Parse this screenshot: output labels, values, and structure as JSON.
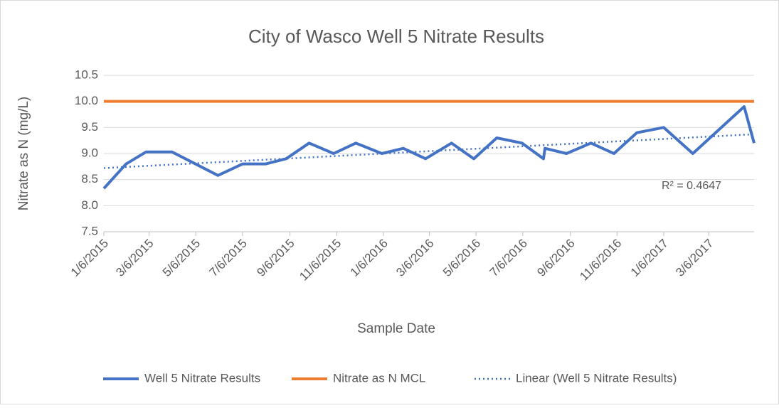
{
  "chart_data": {
    "type": "line",
    "title": "City of Wasco Well 5 Nitrate Results",
    "x_label": "Sample Date",
    "y_label": "Nitrate as N (mg/L)",
    "xlim": [
      "1/6/2015",
      "5/4/2017"
    ],
    "xticks": [
      "1/6/2015",
      "3/6/2015",
      "5/6/2015",
      "7/6/2015",
      "9/6/2015",
      "11/6/2015",
      "1/6/2016",
      "3/6/2016",
      "5/6/2016",
      "7/6/2016",
      "9/6/2016",
      "11/6/2016",
      "1/6/2017",
      "3/6/2017"
    ],
    "ylim": [
      7.5,
      10.5
    ],
    "yticks": [
      {
        "value": 7.5,
        "label": "7.5"
      },
      {
        "value": 8,
        "label": "8.0"
      },
      {
        "value": 8.5,
        "label": "8.5"
      },
      {
        "value": 9,
        "label": "9.0"
      },
      {
        "value": 9.5,
        "label": "9.5"
      },
      {
        "value": 10,
        "label": "10.0"
      },
      {
        "value": 10.5,
        "label": "10.5"
      }
    ],
    "grid": true,
    "legend": "bottom",
    "series": [
      {
        "name": "Well 5 Nitrate Results",
        "color": "#4472c4",
        "style": "solid",
        "x": [
          "1/6/2015",
          "2/4/2015",
          "3/2/2015",
          "4/5/2015",
          "6/4/2015",
          "7/6/2015",
          "8/5/2015",
          "9/1/2015",
          "10/1/2015",
          "11/2/2015",
          "12/1/2015",
          "1/4/2016",
          "2/1/2016",
          "3/1/2016",
          "4/4/2016",
          "5/3/2016",
          "6/2/2016",
          "7/5/2016",
          "8/2/2016",
          "8/4/2016",
          "9/1/2016",
          "10/3/2016",
          "11/2/2016",
          "12/2/2016",
          "1/6/2017",
          "2/13/2017",
          "4/21/2017",
          "5/4/2017"
        ],
        "values": [
          8.33,
          8.8,
          9.03,
          9.03,
          8.58,
          8.8,
          8.8,
          8.9,
          9.2,
          9.0,
          9.2,
          9.0,
          9.1,
          8.9,
          9.2,
          8.9,
          9.3,
          9.2,
          8.9,
          9.1,
          9.0,
          9.2,
          9.0,
          9.4,
          9.5,
          9.0,
          9.9,
          9.2
        ]
      },
      {
        "name": "Nitrate as N MCL",
        "color": "#ed7d31",
        "style": "solid",
        "x": [
          "1/6/2015",
          "5/4/2017"
        ],
        "values": [
          10,
          10
        ]
      },
      {
        "name": "Linear (Well 5 Nitrate Results)",
        "color": "#4472c4",
        "style": "dotted",
        "x": [
          "1/6/2015",
          "5/4/2017"
        ],
        "values": [
          8.72,
          9.37
        ]
      }
    ],
    "annotation": "R² = 0.4647"
  }
}
